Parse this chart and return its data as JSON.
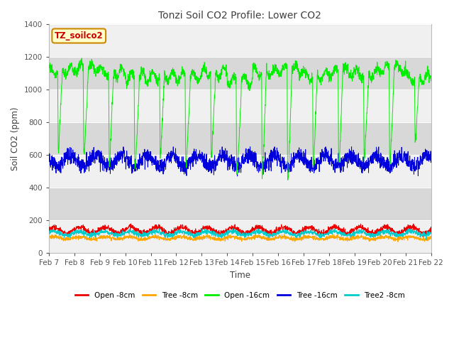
{
  "title": "Tonzi Soil CO2 Profile: Lower CO2",
  "xlabel_time": "Time",
  "ylabel": "Soil CO2 (ppm)",
  "ylim": [
    0,
    1400
  ],
  "yticks": [
    0,
    200,
    400,
    600,
    800,
    1000,
    1200,
    1400
  ],
  "xtick_labels": [
    "Feb 7",
    "Feb 8",
    "Feb 9",
    "Feb 10",
    "Feb 11",
    "Feb 12",
    "Feb 13",
    "Feb 14",
    "Feb 15",
    "Feb 16",
    "Feb 17",
    "Feb 18",
    "Feb 19",
    "Feb 20",
    "Feb 21",
    "Feb 22"
  ],
  "watermark_text": "TZ_soilco2",
  "plot_bg": "#f0f0f0",
  "fig_bg": "#ffffff",
  "band_dark": "#d8d8d8",
  "open16_color": "#00ee00",
  "tree16_color": "#0000dd",
  "open8_color": "#ee0000",
  "tree8_color": "#ffa500",
  "tree2_8_color": "#00cccc",
  "n_points": 2160,
  "days": 15,
  "seed": 42
}
